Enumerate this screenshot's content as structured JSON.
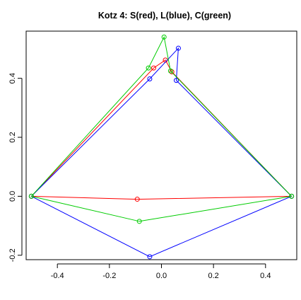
{
  "chart_data": {
    "type": "line",
    "title": "Kotz 4: S(red), L(blue), C(green)",
    "xlabel": "",
    "ylabel": "",
    "xlim": [
      -0.52,
      0.52
    ],
    "ylim": [
      -0.215,
      0.56
    ],
    "x_ticks": [
      -0.4,
      -0.2,
      0.0,
      0.2,
      0.4
    ],
    "x_tick_labels": [
      "-0.4",
      "-0.2",
      "0.0",
      "0.2",
      "0.4"
    ],
    "y_ticks": [
      -0.2,
      0.0,
      0.2,
      0.4
    ],
    "y_tick_labels": [
      "-0.2",
      "0.0",
      "0.2",
      "0.4"
    ],
    "grid": false,
    "legend": "none",
    "series": [
      {
        "color": "#ff0000",
        "closed": true,
        "points": [
          [
            -0.5,
            0.0
          ],
          [
            -0.093,
            -0.01
          ],
          [
            0.5,
            0.0
          ],
          [
            0.04,
            0.422
          ],
          [
            0.015,
            0.462
          ],
          [
            -0.03,
            0.435
          ]
        ]
      },
      {
        "color": "#0000ff",
        "closed": true,
        "points": [
          [
            -0.5,
            0.0
          ],
          [
            -0.045,
            -0.205
          ],
          [
            0.5,
            0.0
          ],
          [
            0.057,
            0.393
          ],
          [
            0.065,
            0.502
          ],
          [
            -0.045,
            0.398
          ]
        ]
      },
      {
        "color": "#00cc00",
        "closed": true,
        "points": [
          [
            -0.5,
            0.0
          ],
          [
            -0.085,
            -0.085
          ],
          [
            0.5,
            0.0
          ],
          [
            0.035,
            0.425
          ],
          [
            0.01,
            0.54
          ],
          [
            -0.05,
            0.435
          ]
        ]
      }
    ]
  }
}
